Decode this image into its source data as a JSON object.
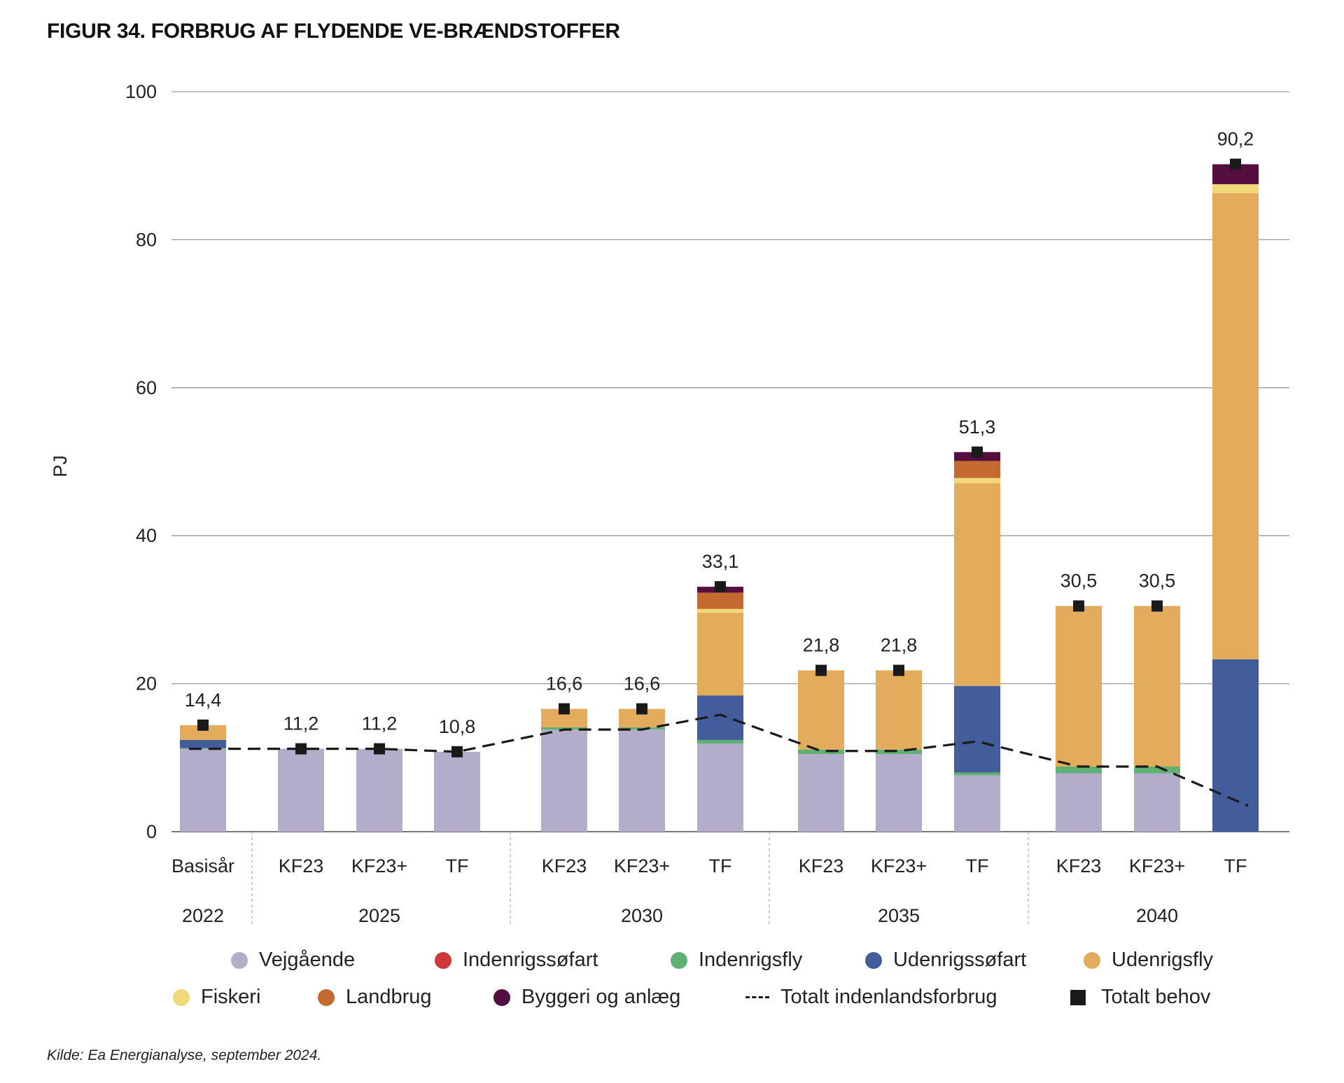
{
  "title": "FIGUR 34. FORBRUG AF FLYDENDE VE-BRÆNDSTOFFER",
  "source": "Kilde: Ea Energianalyse, september 2024.",
  "colors": {
    "Vejgående": "#b3adc9",
    "Indenrigssøfart": "#cf3838",
    "Indenrigsfly": "#5fb073",
    "Udenrigssøfart": "#435d9c",
    "Udenrigsfly": "#e3ab5c",
    "Fiskeri": "#f1d878",
    "Landbrug": "#c4692f",
    "Byggeri og anlæg": "#550f3f",
    "Totalt behov": "#1a1a1a",
    "Totalt indenlandsforbrug": "#1a1a1a"
  },
  "legend": [
    {
      "label": "Vejgående",
      "kind": "dot",
      "color": "#b3adc9"
    },
    {
      "label": "Indenrigssøfart",
      "kind": "dot",
      "color": "#cf3838"
    },
    {
      "label": "Indenrigsfly",
      "kind": "dot",
      "color": "#5fb073"
    },
    {
      "label": "Udenrigssøfart",
      "kind": "dot",
      "color": "#435d9c"
    },
    {
      "label": "Udenrigsfly",
      "kind": "dot",
      "color": "#e3ab5c"
    },
    {
      "label": "Fiskeri",
      "kind": "dot",
      "color": "#f1d878"
    },
    {
      "label": "Landbrug",
      "kind": "dot",
      "color": "#c4692f"
    },
    {
      "label": "Byggeri og anlæg",
      "kind": "dot",
      "color": "#550f3f"
    },
    {
      "label": "Totalt indenlandsforbrug",
      "kind": "dash",
      "color": "#1a1a1a"
    },
    {
      "label": "Totalt behov",
      "kind": "square",
      "color": "#1a1a1a"
    }
  ],
  "chart_data": {
    "type": "bar",
    "stacked": true,
    "ylabel": "PJ",
    "ylim": [
      0,
      100
    ],
    "yticks": [
      0,
      20,
      40,
      60,
      80,
      100
    ],
    "grid": true,
    "legend_position": "bottom",
    "groups": [
      {
        "label": "2022",
        "categories": [
          "Basisår"
        ]
      },
      {
        "label": "2025",
        "categories": [
          "KF23",
          "KF23+",
          "TF"
        ]
      },
      {
        "label": "2030",
        "categories": [
          "KF23",
          "KF23+",
          "TF"
        ]
      },
      {
        "label": "2035",
        "categories": [
          "KF23",
          "KF23+",
          "TF"
        ]
      },
      {
        "label": "2040",
        "categories": [
          "KF23",
          "KF23+",
          "TF"
        ]
      }
    ],
    "categories": [
      "Basisår",
      "KF23",
      "KF23+",
      "TF",
      "KF23",
      "KF23+",
      "TF",
      "KF23",
      "KF23+",
      "TF",
      "KF23",
      "KF23+",
      "TF"
    ],
    "series": [
      {
        "name": "Vejgående",
        "values": [
          11.2,
          11.2,
          11.2,
          10.8,
          13.8,
          13.8,
          11.9,
          10.5,
          10.5,
          7.6,
          7.9,
          7.9,
          0
        ]
      },
      {
        "name": "Indenrigssøfart",
        "values": [
          0,
          0,
          0,
          0,
          0,
          0,
          0,
          0,
          0,
          0,
          0,
          0,
          0
        ]
      },
      {
        "name": "Indenrigsfly",
        "values": [
          0.1,
          0,
          0,
          0,
          0.3,
          0.3,
          0.5,
          0.6,
          0.6,
          0.4,
          0.9,
          0.9,
          0
        ]
      },
      {
        "name": "Udenrigssøfart",
        "values": [
          1.1,
          0,
          0,
          0,
          0,
          0,
          6.0,
          0,
          0,
          11.7,
          0,
          0,
          23.3
        ]
      },
      {
        "name": "Udenrigsfly",
        "values": [
          2.0,
          0,
          0,
          0,
          2.5,
          2.5,
          11.2,
          10.7,
          10.7,
          27.4,
          21.7,
          21.7,
          63.0
        ]
      },
      {
        "name": "Fiskeri",
        "values": [
          0,
          0,
          0,
          0,
          0,
          0,
          0.5,
          0,
          0,
          0.7,
          0,
          0,
          1.2
        ]
      },
      {
        "name": "Landbrug",
        "values": [
          0,
          0,
          0,
          0,
          0,
          0,
          2.2,
          0,
          0,
          2.3,
          0,
          0,
          0
        ]
      },
      {
        "name": "Byggeri og anlæg",
        "values": [
          0,
          0,
          0,
          0,
          0,
          0,
          0.8,
          0,
          0,
          1.2,
          0,
          0,
          2.7
        ]
      }
    ],
    "totalt_behov": {
      "name": "Totalt behov",
      "values": [
        14.4,
        11.2,
        11.2,
        10.8,
        16.6,
        16.6,
        33.1,
        21.8,
        21.8,
        51.3,
        30.5,
        30.5,
        90.2
      ]
    },
    "totalt_indenlandsforbrug": {
      "name": "Totalt indenlandsforbrug",
      "values": [
        11.2,
        11.2,
        11.2,
        10.8,
        13.8,
        13.8,
        15.8,
        10.9,
        10.9,
        12.2,
        8.8,
        8.8,
        3.5
      ]
    },
    "data_labels": [
      "14,4",
      "11,2",
      "11,2",
      "10,8",
      "16,6",
      "16,6",
      "33,1",
      "21,8",
      "21,8",
      "51,3",
      "30,5",
      "30,5",
      "90,2"
    ]
  }
}
